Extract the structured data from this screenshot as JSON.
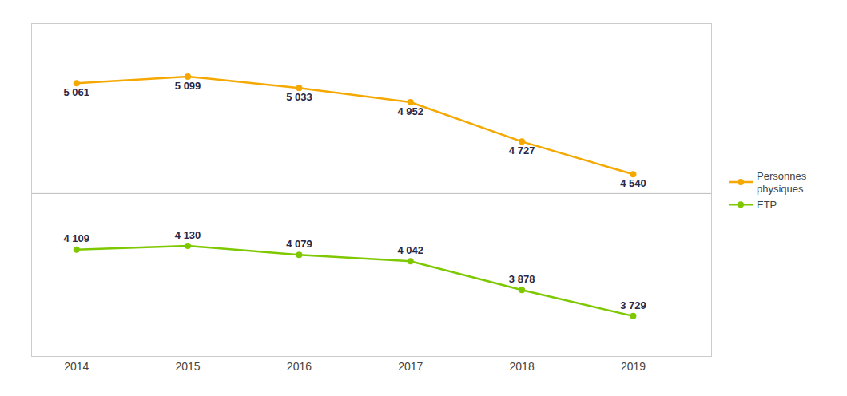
{
  "chart_data": {
    "type": "line",
    "x": [
      2014,
      2015,
      2016,
      2017,
      2018,
      2019
    ],
    "series": [
      {
        "name": "Personnes\nphysiques",
        "color": "#F5A800",
        "marker": "circle",
        "values": [
          5061,
          5099,
          5033,
          4952,
          4727,
          4540
        ],
        "value_labels": [
          "5 061",
          "5 099",
          "5 033",
          "4 952",
          "4 727",
          "4 540"
        ]
      },
      {
        "name": "ETP",
        "color": "#7EC800",
        "marker": "circle",
        "values": [
          4109,
          4130,
          4079,
          4042,
          3878,
          3729
        ],
        "value_labels": [
          "4 109",
          "4 130",
          "4 079",
          "4 042",
          "3 878",
          "3 729"
        ]
      }
    ],
    "xlim": [
      2013.6,
      2019.7
    ],
    "xticks": [
      2014,
      2015,
      2016,
      2017,
      2018,
      2019
    ],
    "ylim": [
      3500,
      5400
    ],
    "hline": 4430,
    "data_labels": true,
    "tick_labels": "x",
    "grid": false,
    "legend": "right"
  }
}
